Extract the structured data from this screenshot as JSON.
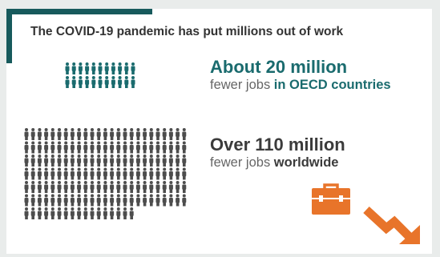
{
  "headline": "The COVID-19 pandemic has put millions out of work",
  "oecd": {
    "amount": "About 20 million",
    "prefix": "fewer jobs",
    "suffix": "in OECD countries",
    "people_color": "#1a6b6e"
  },
  "world": {
    "amount": "Over 110 million",
    "prefix": "fewer jobs",
    "suffix": "worldwide",
    "people_color": "#4d4d4d"
  },
  "colors": {
    "teal": "#1a6b6e",
    "dark": "#3b3b3b",
    "orange": "#e8742a",
    "accent": "#175a5c"
  },
  "icons": [
    "person-icon",
    "briefcase-icon",
    "down-arrow-icon"
  ]
}
